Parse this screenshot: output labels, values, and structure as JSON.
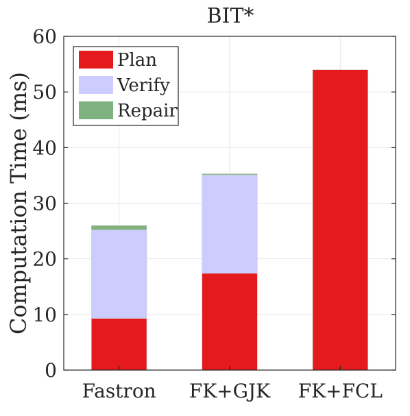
{
  "chart_data": {
    "type": "bar",
    "stacked": true,
    "title": "BIT*",
    "xlabel": "",
    "ylabel": "Computation Time (ms)",
    "categories": [
      "Fastron",
      "FK+GJK",
      "FK+FCL"
    ],
    "series": [
      {
        "name": "Plan",
        "color": "#e41a1c",
        "values": [
          9.3,
          17.4,
          54.0
        ]
      },
      {
        "name": "Verify",
        "color": "#ccccff",
        "values": [
          15.9,
          17.7,
          0.0
        ]
      },
      {
        "name": "Repair",
        "color": "#7fb27f",
        "values": [
          0.8,
          0.2,
          0.0
        ]
      }
    ],
    "ylim": [
      0,
      60
    ],
    "yticks": [
      0,
      10,
      20,
      30,
      40,
      50,
      60
    ],
    "grid": true,
    "legend_position": "top-left"
  }
}
